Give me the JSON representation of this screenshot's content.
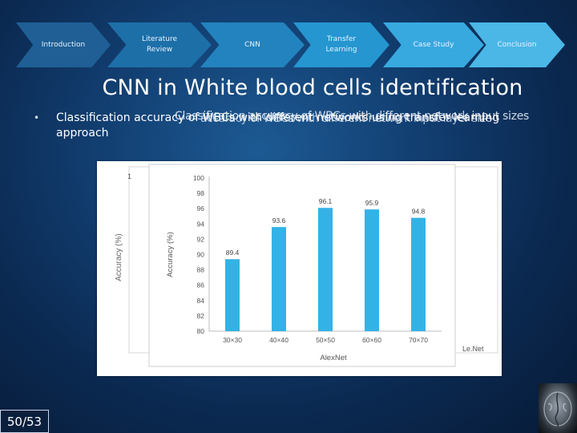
{
  "nav": {
    "steps": [
      {
        "label": "Introduction",
        "color": "#1f5f95"
      },
      {
        "label": "Literature Review",
        "color": "#1d6fa8"
      },
      {
        "label": "CNN",
        "color": "#2283be"
      },
      {
        "label": "Transfer Learning",
        "color": "#2596d0"
      },
      {
        "label": "Case Study",
        "color": "#37a9df"
      },
      {
        "label": "Conclusion",
        "color": "#4ab7e6"
      }
    ]
  },
  "slide": {
    "title": "CNN in White blood cells identification",
    "bullet_marker": "•",
    "bullet_overlap_a": "Classification accuracy of WBCs with different network input sizes",
    "bullet_overlap_b": "accuracy of WBCs with different network input layer size",
    "bullet_text": "Classification accuracy of WBCs with different networks using transfer learning approach",
    "page_number": "50/53"
  },
  "chart_data": {
    "type": "bar",
    "categories": [
      "30×30",
      "40×40",
      "50×50",
      "60×60",
      "70×70"
    ],
    "values": [
      89.4,
      93.6,
      96.1,
      95.9,
      94.8
    ],
    "data_labels": [
      "89.4",
      "93.6",
      "96.1",
      "95.9",
      "94.8"
    ],
    "ylabel": "Accuracy (%)",
    "ylabel_back": "Accuracy (%)",
    "xlabel": "AlexNet",
    "back_tick": "1",
    "back_xlabel": "Le.Net",
    "ylim": [
      80,
      100
    ],
    "yticks": [
      "100",
      "98",
      "96",
      "94",
      "92",
      "90",
      "88",
      "86",
      "84",
      "82",
      "80"
    ],
    "bar_color": "#33b2e6",
    "grid": false
  }
}
